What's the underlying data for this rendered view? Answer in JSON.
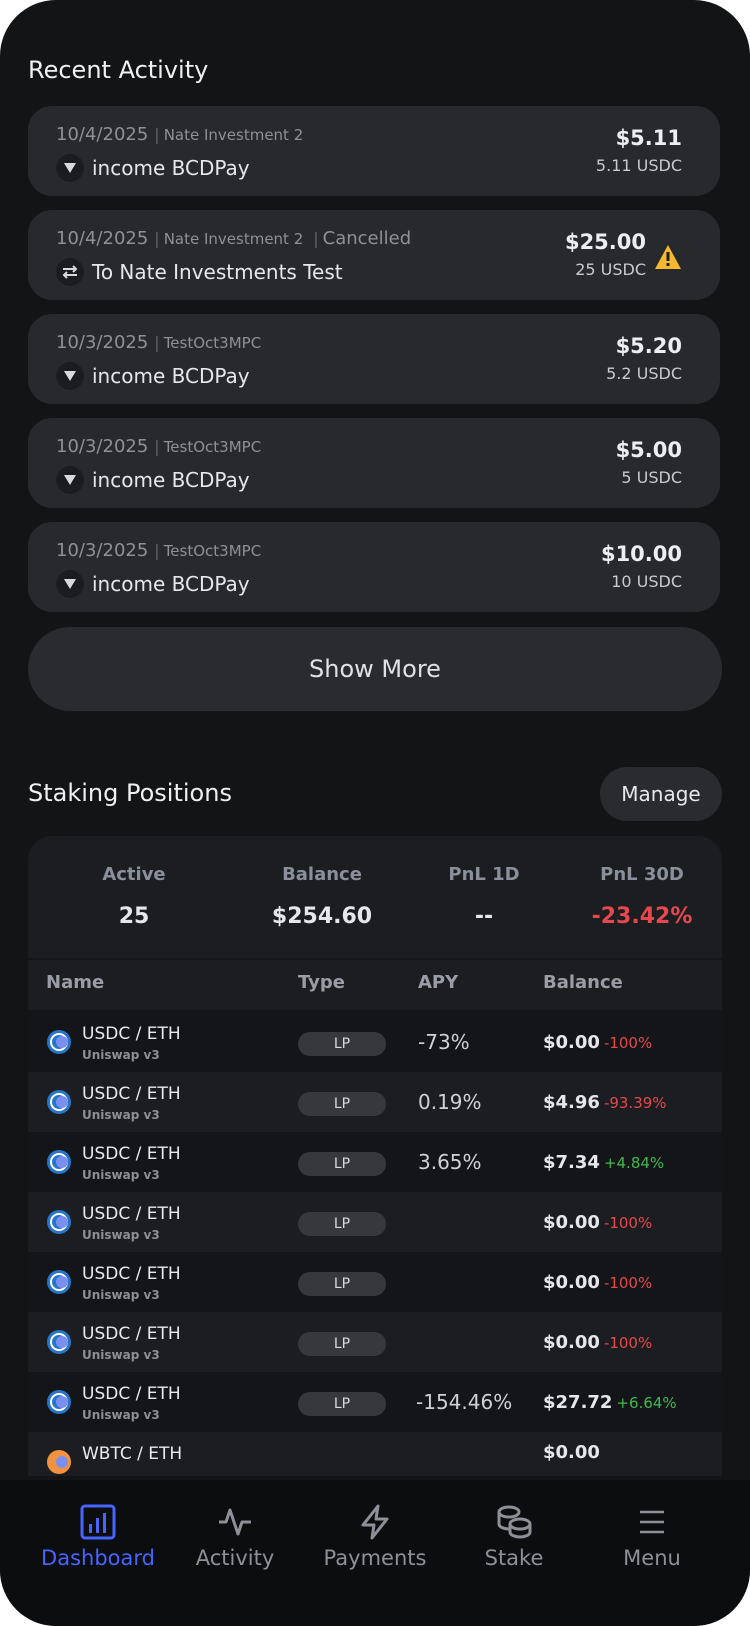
{
  "recent_activity": {
    "title": "Recent Activity",
    "items": [
      {
        "date": "10/4/2025",
        "account": "Nate Investment 2",
        "status": "",
        "direction_icon": "arrow-down-icon",
        "description": "income BCDPay",
        "amount": "$5.11",
        "amount_sub": "5.11 USDC",
        "warning": false
      },
      {
        "date": "10/4/2025",
        "account": "Nate Investment 2",
        "status": "Cancelled",
        "direction_icon": "transfer-icon",
        "description": "To Nate Investments Test",
        "amount": "$25.00",
        "amount_sub": "25 USDC",
        "warning": true
      },
      {
        "date": "10/3/2025",
        "account": "TestOct3MPC",
        "status": "",
        "direction_icon": "arrow-down-icon",
        "description": "income BCDPay",
        "amount": "$5.20",
        "amount_sub": "5.2 USDC",
        "warning": false
      },
      {
        "date": "10/3/2025",
        "account": "TestOct3MPC",
        "status": "",
        "direction_icon": "arrow-down-icon",
        "description": "income BCDPay",
        "amount": "$5.00",
        "amount_sub": "5 USDC",
        "warning": false
      },
      {
        "date": "10/3/2025",
        "account": "TestOct3MPC",
        "status": "",
        "direction_icon": "arrow-down-icon",
        "description": "income BCDPay",
        "amount": "$10.00",
        "amount_sub": "10 USDC",
        "warning": false
      }
    ],
    "show_more_label": "Show More"
  },
  "staking": {
    "title": "Staking Positions",
    "manage_label": "Manage",
    "summary": [
      {
        "label": "Active",
        "value": "25"
      },
      {
        "label": "Balance",
        "value": "$254.60"
      },
      {
        "label": "PnL 1D",
        "value": "--"
      },
      {
        "label": "PnL 30D",
        "value": "-23.42%"
      }
    ],
    "columns": [
      "Name",
      "Type",
      "APY",
      "Balance"
    ],
    "rows": [
      {
        "pair": "USDC / ETH",
        "protocol": "Uniswap v3",
        "type": "LP",
        "apy": "-73%",
        "balance": "$0.00",
        "change": "-100%"
      },
      {
        "pair": "USDC / ETH",
        "protocol": "Uniswap v3",
        "type": "LP",
        "apy": "0.19%",
        "balance": "$4.96",
        "change": "-93.39%"
      },
      {
        "pair": "USDC / ETH",
        "protocol": "Uniswap v3",
        "type": "LP",
        "apy": "3.65%",
        "balance": "$7.34",
        "change": "+4.84%"
      },
      {
        "pair": "USDC / ETH",
        "protocol": "Uniswap v3",
        "type": "LP",
        "apy": "",
        "balance": "$0.00",
        "change": "-100%"
      },
      {
        "pair": "USDC / ETH",
        "protocol": "Uniswap v3",
        "type": "LP",
        "apy": "",
        "balance": "$0.00",
        "change": "-100%"
      },
      {
        "pair": "USDC / ETH",
        "protocol": "Uniswap v3",
        "type": "LP",
        "apy": "",
        "balance": "$0.00",
        "change": "-100%"
      },
      {
        "pair": "USDC / ETH",
        "protocol": "Uniswap v3",
        "type": "LP",
        "apy": "-154.46%",
        "balance": "$27.72",
        "change": "+6.64%"
      },
      {
        "pair": "WBTC / ETH",
        "protocol": "",
        "type": "",
        "apy": "",
        "balance": "$0.00",
        "change": ""
      }
    ]
  },
  "nav": {
    "items": [
      {
        "label": "Dashboard",
        "icon": "chart-icon",
        "active": true
      },
      {
        "label": "Activity",
        "icon": "pulse-icon",
        "active": false
      },
      {
        "label": "Payments",
        "icon": "lightning-icon",
        "active": false
      },
      {
        "label": "Stake",
        "icon": "coins-icon",
        "active": false
      },
      {
        "label": "Menu",
        "icon": "hamburger-icon",
        "active": false
      }
    ]
  },
  "colors": {
    "background": "#131416",
    "card": "#28292d",
    "accent": "#4664ff",
    "negative": "#e5484d",
    "positive": "#3fb950",
    "warning": "#f5b82e"
  }
}
